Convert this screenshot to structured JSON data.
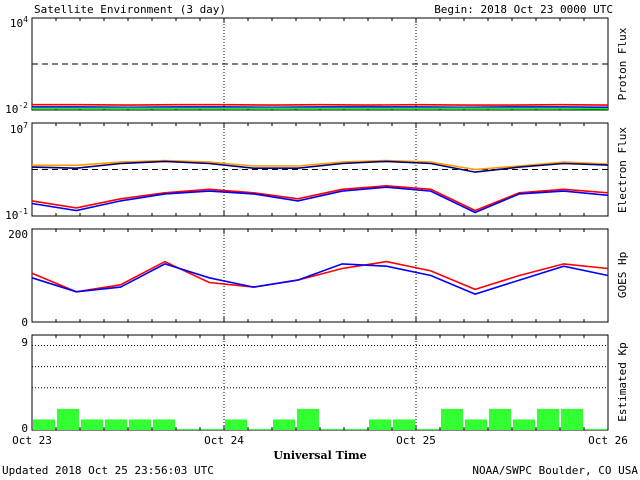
{
  "header": {
    "title": "Satellite Environment (3 day)",
    "begin": "Begin:  2018 Oct 23 0000 UTC"
  },
  "footer": {
    "updated": "Updated 2018 Oct 25 23:56:03 UTC",
    "credit": "NOAA/SWPC Boulder, CO USA"
  },
  "x_axis": {
    "label": "Universal Time",
    "ticks": [
      "Oct 23",
      "Oct 24",
      "Oct 25",
      "Oct 26"
    ]
  },
  "chart_data": [
    {
      "type": "line",
      "ylabel": "Proton Flux",
      "scale": "log",
      "ylim": [
        0.01,
        10000
      ],
      "tick_labels": [
        {
          "base": "10",
          "exp": "4"
        },
        {
          "base": "10",
          "exp": "-2"
        }
      ],
      "threshold": 10,
      "series": [
        {
          "color": "#ff0000",
          "values": [
            0.022,
            0.022,
            0.021,
            0.022,
            0.022,
            0.021,
            0.022,
            0.021,
            0.022,
            0.021,
            0.021,
            0.022,
            0.021
          ]
        },
        {
          "color": "#0000ff",
          "values": [
            0.016,
            0.016,
            0.015,
            0.016,
            0.016,
            0.015,
            0.016,
            0.016,
            0.016,
            0.015,
            0.016,
            0.016,
            0.015
          ]
        },
        {
          "color": "#00ff00",
          "values": [
            0.013,
            0.013,
            0.013,
            0.013,
            0.013,
            0.013,
            0.013,
            0.013,
            0.013,
            0.013,
            0.013,
            0.013,
            0.012
          ]
        }
      ]
    },
    {
      "type": "line",
      "ylabel": "Electron Flux",
      "scale": "log",
      "ylim": [
        0.1,
        10000000
      ],
      "tick_labels": [
        {
          "base": "10",
          "exp": "7"
        },
        {
          "base": "10",
          "exp": "-1"
        }
      ],
      "threshold": 1000,
      "series": [
        {
          "color": "#ff9900",
          "values": [
            2300,
            2300,
            4300,
            6000,
            4300,
            2000,
            2000,
            4300,
            6000,
            4300,
            1000,
            2000,
            4300,
            3000
          ]
        },
        {
          "color": "#000080",
          "values": [
            1600,
            1300,
            3300,
            5000,
            3300,
            1300,
            1300,
            3300,
            5000,
            3300,
            600,
            1600,
            3300,
            2400
          ]
        },
        {
          "color": "#ff0000",
          "values": [
            2,
            0.5,
            3,
            10,
            20,
            10,
            3,
            20,
            40,
            20,
            0.3,
            10,
            20,
            10
          ]
        },
        {
          "color": "#0000ff",
          "values": [
            1.2,
            0.3,
            2,
            8,
            14,
            8,
            2,
            14,
            30,
            14,
            0.2,
            8,
            14,
            6
          ]
        }
      ]
    },
    {
      "type": "line",
      "ylabel": "GOES Hp",
      "ylim": [
        0,
        200
      ],
      "tick_labels": [
        "200",
        "0"
      ],
      "series": [
        {
          "color": "#ff0000",
          "values": [
            105,
            65,
            80,
            130,
            85,
            75,
            90,
            115,
            130,
            110,
            70,
            100,
            125,
            115
          ]
        },
        {
          "color": "#0000ff",
          "values": [
            95,
            65,
            75,
            125,
            95,
            75,
            90,
            125,
            120,
            100,
            60,
            90,
            120,
            100
          ]
        }
      ]
    },
    {
      "type": "bar",
      "ylabel": "Estimated Kp",
      "ylim": [
        0,
        9
      ],
      "tick_labels": [
        "9",
        "0"
      ],
      "gridlines": [
        4,
        6,
        8
      ],
      "bar_color": "#33ff33",
      "values": [
        1,
        2,
        1,
        1,
        1,
        1,
        0,
        0,
        1,
        0,
        1,
        2,
        0,
        0,
        1,
        1,
        0,
        2,
        1,
        2,
        1,
        2,
        2,
        0
      ]
    }
  ]
}
